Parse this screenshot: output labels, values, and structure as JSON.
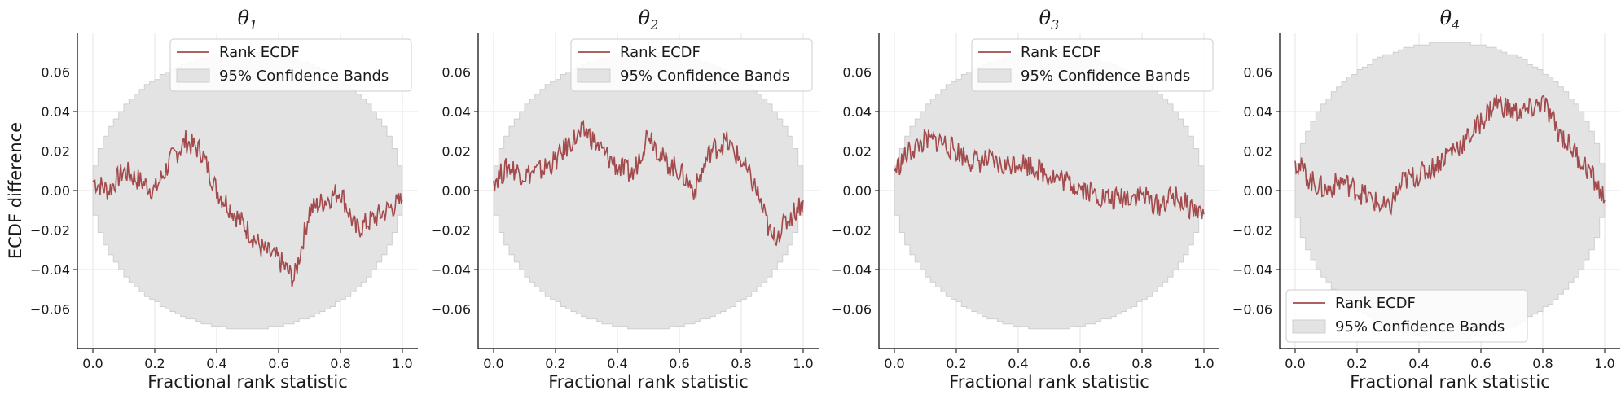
{
  "chart_data": [
    {
      "type": "line",
      "title": "θ1",
      "xlabel": "Fractional rank statistic",
      "ylabel": "ECDF difference",
      "xlim": [
        -0.05,
        1.05
      ],
      "ylim": [
        -0.08,
        0.08
      ],
      "xticks": [
        "0.0",
        "0.2",
        "0.4",
        "0.6",
        "0.8",
        "1.0"
      ],
      "yticks": [
        "−0.06",
        "−0.04",
        "−0.02",
        "0.00",
        "0.02",
        "0.04",
        "0.06"
      ],
      "grid": true,
      "legend_position": "top-right",
      "legend": [
        "Rank ECDF",
        "95% Confidence Bands"
      ],
      "band_halfwidth_max": 0.07,
      "series": [
        {
          "name": "Rank ECDF",
          "x": [
            0.0,
            0.05,
            0.1,
            0.15,
            0.2,
            0.25,
            0.3,
            0.35,
            0.4,
            0.45,
            0.5,
            0.55,
            0.6,
            0.65,
            0.7,
            0.75,
            0.8,
            0.85,
            0.9,
            0.95,
            1.0
          ],
          "y": [
            0.005,
            0.0,
            0.01,
            0.005,
            0.0,
            0.015,
            0.025,
            0.02,
            0.0,
            -0.01,
            -0.02,
            -0.03,
            -0.035,
            -0.045,
            -0.01,
            -0.005,
            0.0,
            -0.02,
            -0.015,
            -0.01,
            -0.005
          ]
        }
      ]
    },
    {
      "type": "line",
      "title": "θ2",
      "xlabel": "Fractional rank statistic",
      "ylabel": "",
      "xlim": [
        -0.05,
        1.05
      ],
      "ylim": [
        -0.08,
        0.08
      ],
      "xticks": [
        "0.0",
        "0.2",
        "0.4",
        "0.6",
        "0.8",
        "1.0"
      ],
      "yticks": [
        "−0.06",
        "−0.04",
        "−0.02",
        "0.00",
        "0.02",
        "0.04",
        "0.06"
      ],
      "grid": true,
      "legend_position": "top-right",
      "legend": [
        "Rank ECDF",
        "95% Confidence Bands"
      ],
      "band_halfwidth_max": 0.07,
      "series": [
        {
          "name": "Rank ECDF",
          "x": [
            0.0,
            0.05,
            0.1,
            0.15,
            0.2,
            0.25,
            0.3,
            0.35,
            0.4,
            0.45,
            0.5,
            0.55,
            0.6,
            0.65,
            0.7,
            0.75,
            0.8,
            0.85,
            0.9,
            0.95,
            1.0
          ],
          "y": [
            0.005,
            0.012,
            0.008,
            0.01,
            0.015,
            0.025,
            0.03,
            0.02,
            0.012,
            0.008,
            0.03,
            0.015,
            0.01,
            0.0,
            0.02,
            0.025,
            0.015,
            0.0,
            -0.025,
            -0.015,
            -0.005
          ]
        }
      ]
    },
    {
      "type": "line",
      "title": "θ3",
      "xlabel": "Fractional rank statistic",
      "ylabel": "",
      "xlim": [
        -0.05,
        1.05
      ],
      "ylim": [
        -0.08,
        0.08
      ],
      "xticks": [
        "0.0",
        "0.2",
        "0.4",
        "0.6",
        "0.8",
        "1.0"
      ],
      "yticks": [
        "−0.06",
        "−0.04",
        "−0.02",
        "0.00",
        "0.02",
        "0.04",
        "0.06"
      ],
      "grid": true,
      "legend_position": "top-right",
      "legend": [
        "Rank ECDF",
        "95% Confidence Bands"
      ],
      "band_halfwidth_max": 0.07,
      "series": [
        {
          "name": "Rank ECDF",
          "x": [
            0.0,
            0.05,
            0.1,
            0.15,
            0.2,
            0.25,
            0.3,
            0.35,
            0.4,
            0.45,
            0.5,
            0.55,
            0.6,
            0.65,
            0.7,
            0.75,
            0.8,
            0.85,
            0.9,
            0.95,
            1.0
          ],
          "y": [
            0.01,
            0.02,
            0.025,
            0.025,
            0.02,
            0.015,
            0.015,
            0.012,
            0.015,
            0.012,
            0.008,
            0.005,
            0.002,
            -0.002,
            -0.005,
            -0.003,
            -0.002,
            -0.008,
            -0.003,
            -0.008,
            -0.012
          ]
        }
      ]
    },
    {
      "type": "line",
      "title": "θ4",
      "xlabel": "Fractional rank statistic",
      "ylabel": "",
      "xlim": [
        -0.05,
        1.05
      ],
      "ylim": [
        -0.08,
        0.08
      ],
      "xticks": [
        "0.0",
        "0.2",
        "0.4",
        "0.6",
        "0.8",
        "1.0"
      ],
      "yticks": [
        "−0.06",
        "−0.04",
        "−0.02",
        "0.00",
        "0.02",
        "0.04",
        "0.06"
      ],
      "grid": true,
      "legend_position": "bottom-left",
      "legend": [
        "Rank ECDF",
        "95% Confidence Bands"
      ],
      "band_halfwidth_max": 0.075,
      "series": [
        {
          "name": "Rank ECDF",
          "x": [
            0.0,
            0.05,
            0.1,
            0.15,
            0.2,
            0.25,
            0.3,
            0.35,
            0.4,
            0.45,
            0.5,
            0.55,
            0.6,
            0.65,
            0.7,
            0.75,
            0.8,
            0.85,
            0.9,
            0.95,
            1.0
          ],
          "y": [
            0.015,
            0.005,
            0.0,
            0.005,
            0.0,
            -0.005,
            -0.01,
            0.005,
            0.008,
            0.012,
            0.02,
            0.025,
            0.035,
            0.045,
            0.04,
            0.04,
            0.045,
            0.03,
            0.02,
            0.01,
            -0.005
          ]
        }
      ]
    }
  ],
  "colors": {
    "line": "#a24a4c",
    "band_fill": "#e3e3e3",
    "band_edge": "#cfcfcf",
    "grid": "#e6e6e6",
    "axis": "#000000"
  }
}
